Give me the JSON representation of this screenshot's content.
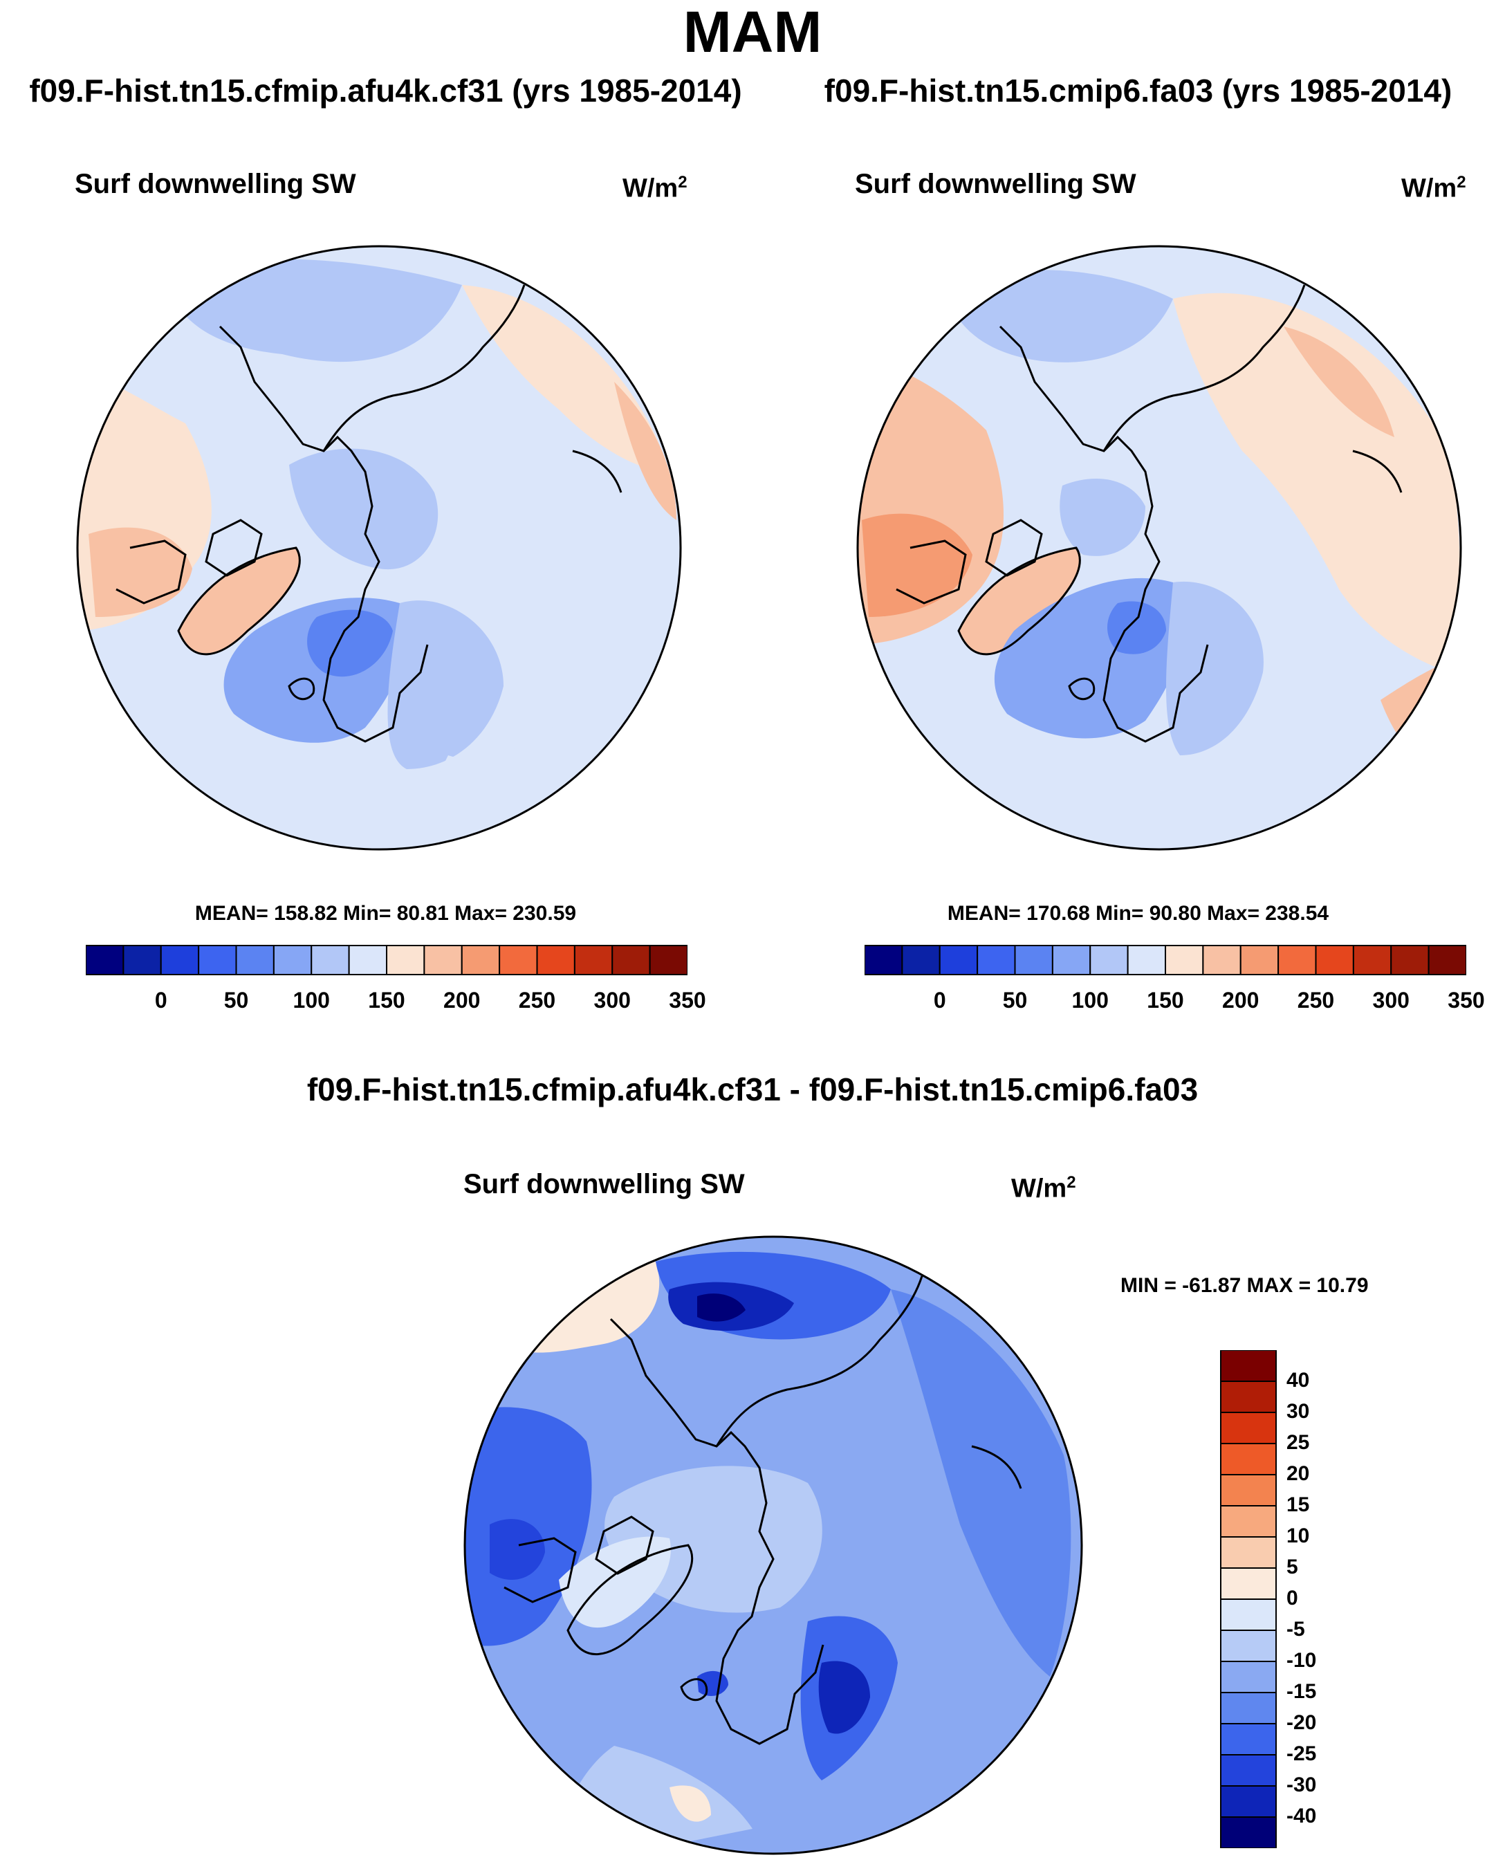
{
  "page": {
    "season": "MAM",
    "diff_title": "f09.F-hist.tn15.cfmip.afu4k.cf31 - f09.F-hist.tn15.cmip6.fa03"
  },
  "panels": [
    {
      "run_title": "f09.F-hist.tn15.cfmip.afu4k.cf31 (yrs 1985-2014)",
      "variable": "Surf downwelling SW",
      "units": "W/m",
      "units_exp": "2",
      "stats": "MEAN= 158.82  Min=  80.81  Max= 230.59"
    },
    {
      "run_title": "f09.F-hist.tn15.cmip6.fa03 (yrs 1985-2014)",
      "variable": "Surf downwelling SW",
      "units": "W/m",
      "units_exp": "2",
      "stats": "MEAN= 170.68  Min=  90.80  Max= 238.54"
    },
    {
      "variable": "Surf downwelling SW",
      "units": "W/m",
      "units_exp": "2",
      "stats": "MIN = -61.87 MAX =  10.79"
    }
  ],
  "chart_data": [
    {
      "type": "heatmap",
      "projection": "north polar stereographic",
      "title": "f09.F-hist.tn15.cfmip.afu4k.cf31 (yrs 1985-2014)",
      "variable": "Surf downwelling SW",
      "units": "W/m2",
      "mean": 158.82,
      "min": 80.81,
      "max": 230.59,
      "colorbar_ticks": [
        "0",
        "50",
        "100",
        "150",
        "200",
        "250",
        "300",
        "350"
      ],
      "colors": [
        "#00007f",
        "#0b22a6",
        "#1e3fdc",
        "#3d64f0",
        "#5b83f2",
        "#86a6f5",
        "#b2c7f7",
        "#dbe6fa",
        "#fbe3d2",
        "#f8c1a4",
        "#f59b72",
        "#f26a3d",
        "#e5461d",
        "#c22e10",
        "#9e1c08",
        "#7a0a03"
      ]
    },
    {
      "type": "heatmap",
      "projection": "north polar stereographic",
      "title": "f09.F-hist.tn15.cmip6.fa03 (yrs 1985-2014)",
      "variable": "Surf downwelling SW",
      "units": "W/m2",
      "mean": 170.68,
      "min": 90.8,
      "max": 238.54,
      "colorbar_ticks": [
        "0",
        "50",
        "100",
        "150",
        "200",
        "250",
        "300",
        "350"
      ],
      "colors": [
        "#00007f",
        "#0b22a6",
        "#1e3fdc",
        "#3d64f0",
        "#5b83f2",
        "#86a6f5",
        "#b2c7f7",
        "#dbe6fa",
        "#fbe3d2",
        "#f8c1a4",
        "#f59b72",
        "#f26a3d",
        "#e5461d",
        "#c22e10",
        "#9e1c08",
        "#7a0a03"
      ]
    },
    {
      "type": "heatmap",
      "projection": "north polar stereographic",
      "title": "f09.F-hist.tn15.cfmip.afu4k.cf31 - f09.F-hist.tn15.cmip6.fa03",
      "variable": "Surf downwelling SW",
      "units": "W/m2",
      "min": -61.87,
      "max": 10.79,
      "colorbar_ticks": [
        "40",
        "30",
        "25",
        "20",
        "15",
        "10",
        "5",
        "0",
        "-5",
        "-10",
        "-15",
        "-20",
        "-25",
        "-30",
        "-40"
      ],
      "colors": [
        "#7a0000",
        "#b01d06",
        "#d8340f",
        "#ee5a28",
        "#f3834f",
        "#f7a97e",
        "#f9ccaf",
        "#fbeadc",
        "#dbe7fa",
        "#b6cbf6",
        "#8aa9f2",
        "#5f87ef",
        "#3c65ec",
        "#2344dc",
        "#0e25b8",
        "#000078"
      ]
    }
  ]
}
